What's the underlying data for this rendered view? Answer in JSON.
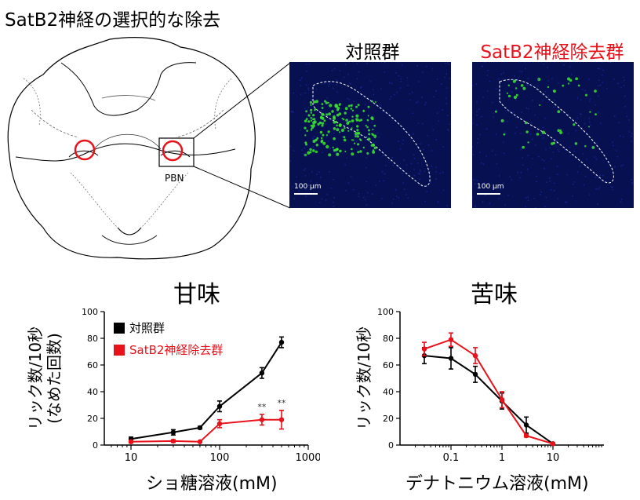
{
  "title": "SatB2神経の選択的な除去",
  "panels": {
    "control_label": "対照群",
    "ablation_label": "SatB2神経除去群",
    "region_label": "PBN",
    "scale_bar": "100 μm"
  },
  "colors": {
    "control": "#000000",
    "ablation": "#e8121b",
    "microscopy_bg": "#071152",
    "cells": "#3be830"
  },
  "chart_data": [
    {
      "type": "line",
      "title": "甘味",
      "xlabel": "ショ糖溶液(mM)",
      "ylabel": "リック数/10秒\n(なめた回数)",
      "xscale": "log",
      "xlim": [
        5,
        1000
      ],
      "ylim": [
        0,
        100
      ],
      "xticks": [
        10,
        100,
        1000
      ],
      "yticks": [
        0,
        20,
        40,
        60,
        80,
        100
      ],
      "legend": "top-left",
      "series": [
        {
          "name": "対照群",
          "color": "#000000",
          "x": [
            10,
            30,
            60,
            100,
            300,
            500
          ],
          "y": [
            4.5,
            9.5,
            13,
            29,
            54,
            77
          ],
          "err": [
            1.5,
            2,
            1,
            4,
            4,
            4
          ]
        },
        {
          "name": "SatB2神経除去群",
          "color": "#e8121b",
          "x": [
            10,
            30,
            60,
            100,
            300,
            500
          ],
          "y": [
            2.5,
            3,
            2.5,
            16,
            19,
            19
          ],
          "err": [
            1,
            1,
            0.5,
            3,
            4,
            7
          ]
        }
      ],
      "annotations": [
        {
          "x": 300,
          "text": "**"
        },
        {
          "x": 500,
          "text": "**"
        }
      ]
    },
    {
      "type": "line",
      "title": "苦味",
      "xlabel": "デナトニウム溶液(mM)",
      "ylabel": "リック数/10秒",
      "xscale": "log",
      "xlim": [
        0.01,
        100
      ],
      "ylim": [
        0,
        100
      ],
      "xticks": [
        0.1,
        1,
        10
      ],
      "yticks": [
        0,
        20,
        40,
        60,
        80,
        100
      ],
      "series": [
        {
          "name": "対照群",
          "color": "#000000",
          "x": [
            0.03,
            0.1,
            0.3,
            1,
            3,
            10
          ],
          "y": [
            67,
            65,
            53,
            33,
            15,
            1
          ],
          "err": [
            6,
            8,
            6,
            6,
            6,
            0.5
          ]
        },
        {
          "name": "SatB2神経除去群",
          "color": "#e8121b",
          "x": [
            0.03,
            0.1,
            0.3,
            1,
            3,
            10
          ],
          "y": [
            72,
            79,
            67,
            34,
            7,
            1
          ],
          "err": [
            5,
            5,
            6,
            6,
            1,
            0.5
          ]
        }
      ]
    }
  ]
}
